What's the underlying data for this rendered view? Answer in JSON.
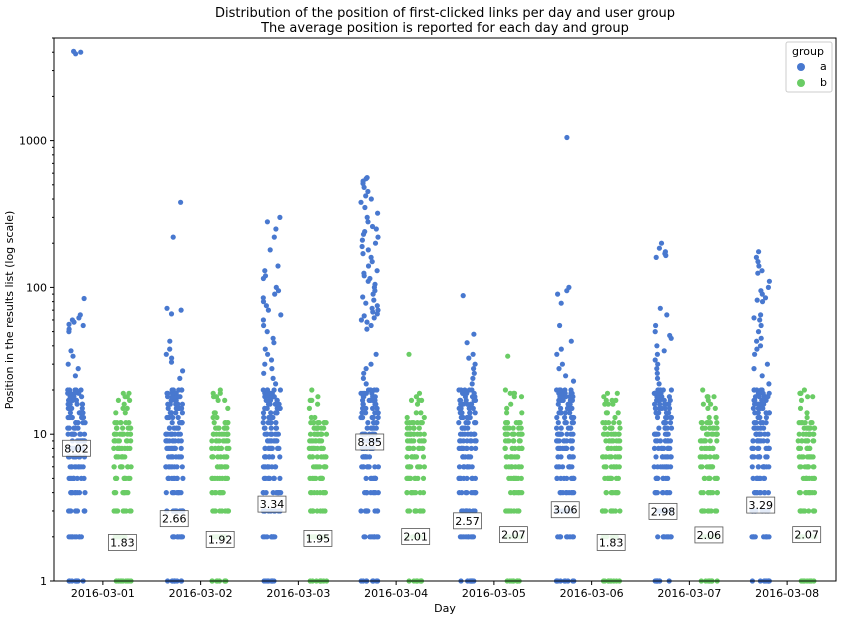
{
  "chart_data": {
    "type": "scatter",
    "title": "Distribution of the position of first-clicked links per day and user group",
    "subtitle": "The average position is reported for each day and group",
    "xlabel": "Day",
    "ylabel": "Position in the results list (log scale)",
    "yscale": "log",
    "ylim": [
      1,
      5000
    ],
    "yticks": [
      1,
      10,
      100,
      1000
    ],
    "ytick_labels": [
      "1",
      "10",
      "100",
      "1000"
    ],
    "categories": [
      "2016-03-01",
      "2016-03-02",
      "2016-03-03",
      "2016-03-04",
      "2016-03-05",
      "2016-03-06",
      "2016-03-07",
      "2016-03-08"
    ],
    "legend": {
      "title": "group",
      "position": "top-right"
    },
    "series": [
      {
        "name": "a",
        "color": "#4878cf",
        "means": [
          8.02,
          2.66,
          3.34,
          8.85,
          2.57,
          3.06,
          2.98,
          3.29
        ],
        "mean_labels": [
          "8.02",
          "2.66",
          "3.34",
          "8.85",
          "2.57",
          "3.06",
          "2.98",
          "3.29"
        ],
        "outliers": [
          [
            3900,
            4000,
            4050,
            84,
            65,
            62,
            60,
            58,
            56,
            55,
            52,
            50,
            37,
            34,
            30,
            28,
            25
          ],
          [
            380,
            220,
            72,
            70,
            66,
            43,
            38,
            35,
            33,
            31,
            27,
            24
          ],
          [
            300,
            280,
            250,
            220,
            180,
            140,
            130,
            120,
            115,
            100,
            95,
            90,
            85,
            80,
            75,
            70,
            65,
            60,
            55,
            50,
            45,
            42,
            38,
            35,
            32,
            30,
            28,
            26,
            24,
            22
          ],
          [
            560,
            550,
            530,
            510,
            480,
            450,
            420,
            400,
            380,
            350,
            320,
            300,
            280,
            260,
            250,
            240,
            230,
            220,
            210,
            200,
            190,
            180,
            170,
            160,
            150,
            140,
            130,
            125,
            120,
            115,
            110,
            105,
            100,
            95,
            90,
            86,
            82,
            78,
            75,
            72,
            70,
            68,
            66,
            64,
            62,
            60,
            58,
            55,
            52,
            35,
            30,
            28,
            26,
            24,
            22
          ],
          [
            88,
            48,
            42,
            35,
            33,
            30,
            28,
            26,
            24,
            22
          ],
          [
            1050,
            100,
            95,
            90,
            78,
            55,
            43,
            38,
            35,
            30,
            28,
            25,
            23
          ],
          [
            200,
            185,
            175,
            170,
            165,
            160,
            72,
            65,
            55,
            50,
            47,
            45,
            40,
            37,
            35,
            32,
            30,
            28,
            26,
            24,
            22
          ],
          [
            175,
            160,
            150,
            140,
            130,
            125,
            110,
            100,
            95,
            90,
            85,
            82,
            80,
            65,
            62,
            60,
            55,
            50,
            45,
            43,
            40,
            38,
            35,
            30,
            28,
            25,
            22
          ]
        ]
      },
      {
        "name": "b",
        "color": "#6acc65",
        "means": [
          1.83,
          1.92,
          1.95,
          2.01,
          2.07,
          1.83,
          2.06,
          2.07
        ],
        "mean_labels": [
          "1.83",
          "1.92",
          "1.95",
          "2.01",
          "2.07",
          "1.83",
          "2.06",
          "2.07"
        ],
        "outliers": [
          [],
          [],
          [],
          [
            35
          ],
          [
            34
          ],
          [],
          [],
          []
        ]
      }
    ]
  }
}
